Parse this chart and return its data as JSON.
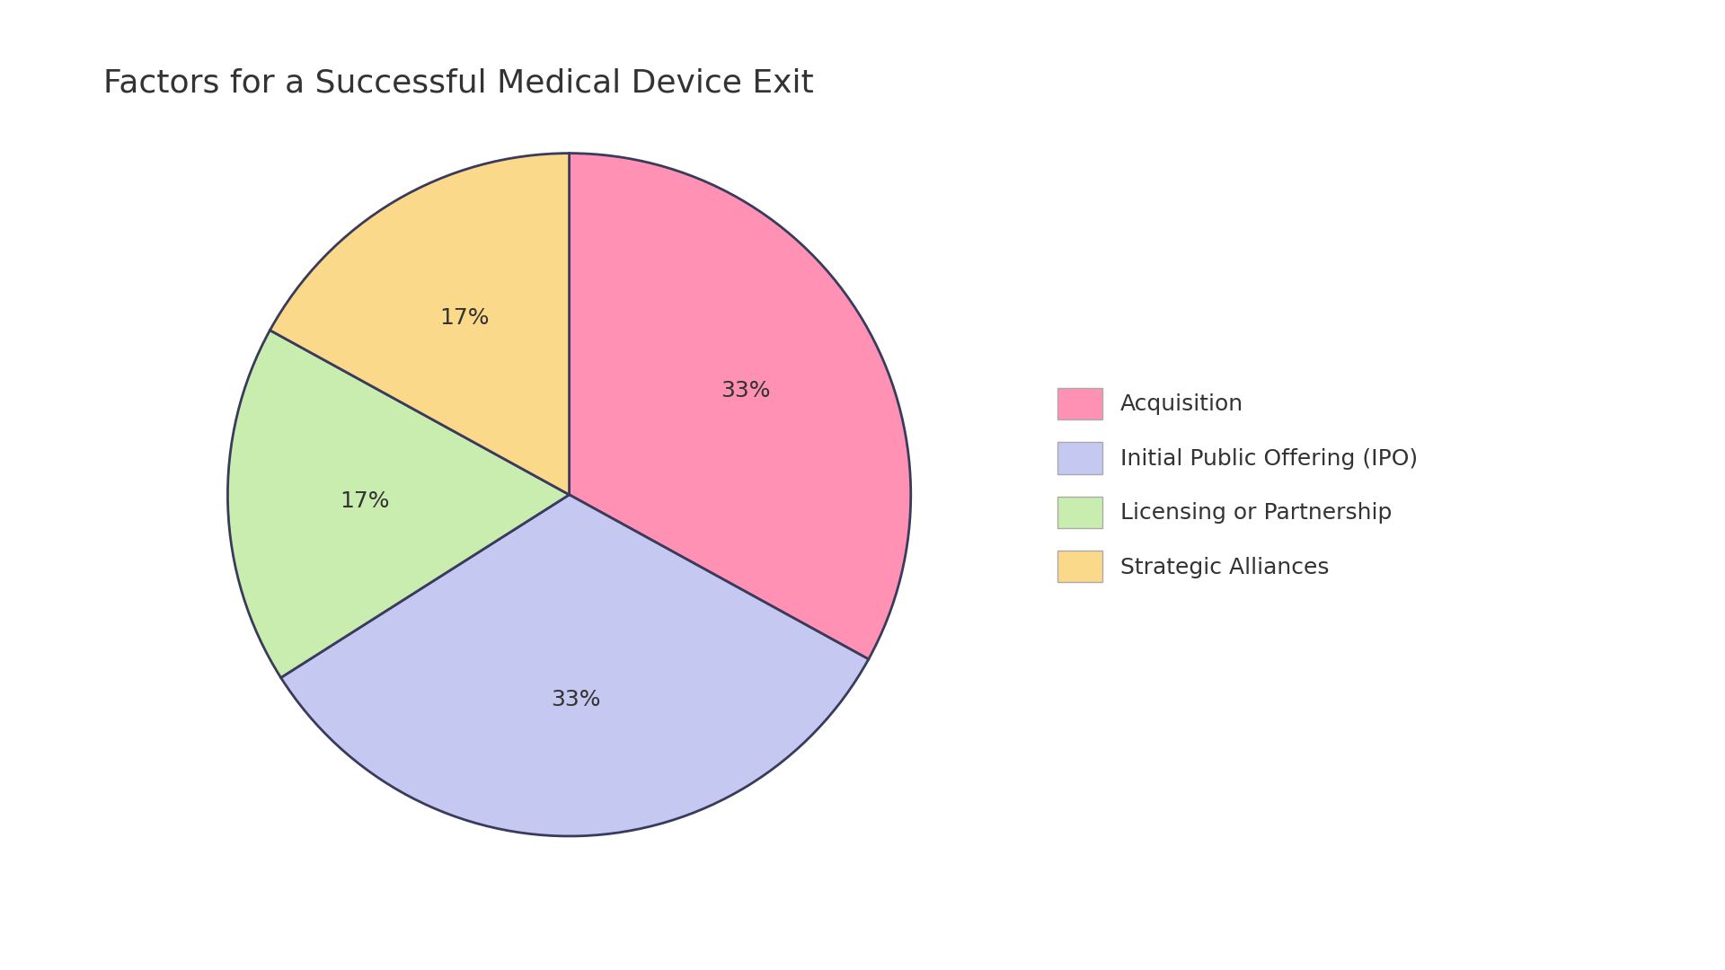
{
  "title": "Factors for a Successful Medical Device Exit",
  "slices": [
    {
      "label": "Acquisition",
      "value": 33,
      "color": "#FF91B4"
    },
    {
      "label": "Initial Public Offering (IPO)",
      "value": 33,
      "color": "#C5C8F0"
    },
    {
      "label": "Licensing or Partnership",
      "value": 17,
      "color": "#C8EDAF"
    },
    {
      "label": "Strategic Alliances",
      "value": 17,
      "color": "#FAD98B"
    }
  ],
  "pct_labels": [
    "33%",
    "33%",
    "17%",
    "17%"
  ],
  "background_color": "#FFFFFF",
  "title_fontsize": 26,
  "label_fontsize": 18,
  "legend_fontsize": 18,
  "text_color": "#333333",
  "edge_color": "#3A3A5C",
  "startangle": 90
}
